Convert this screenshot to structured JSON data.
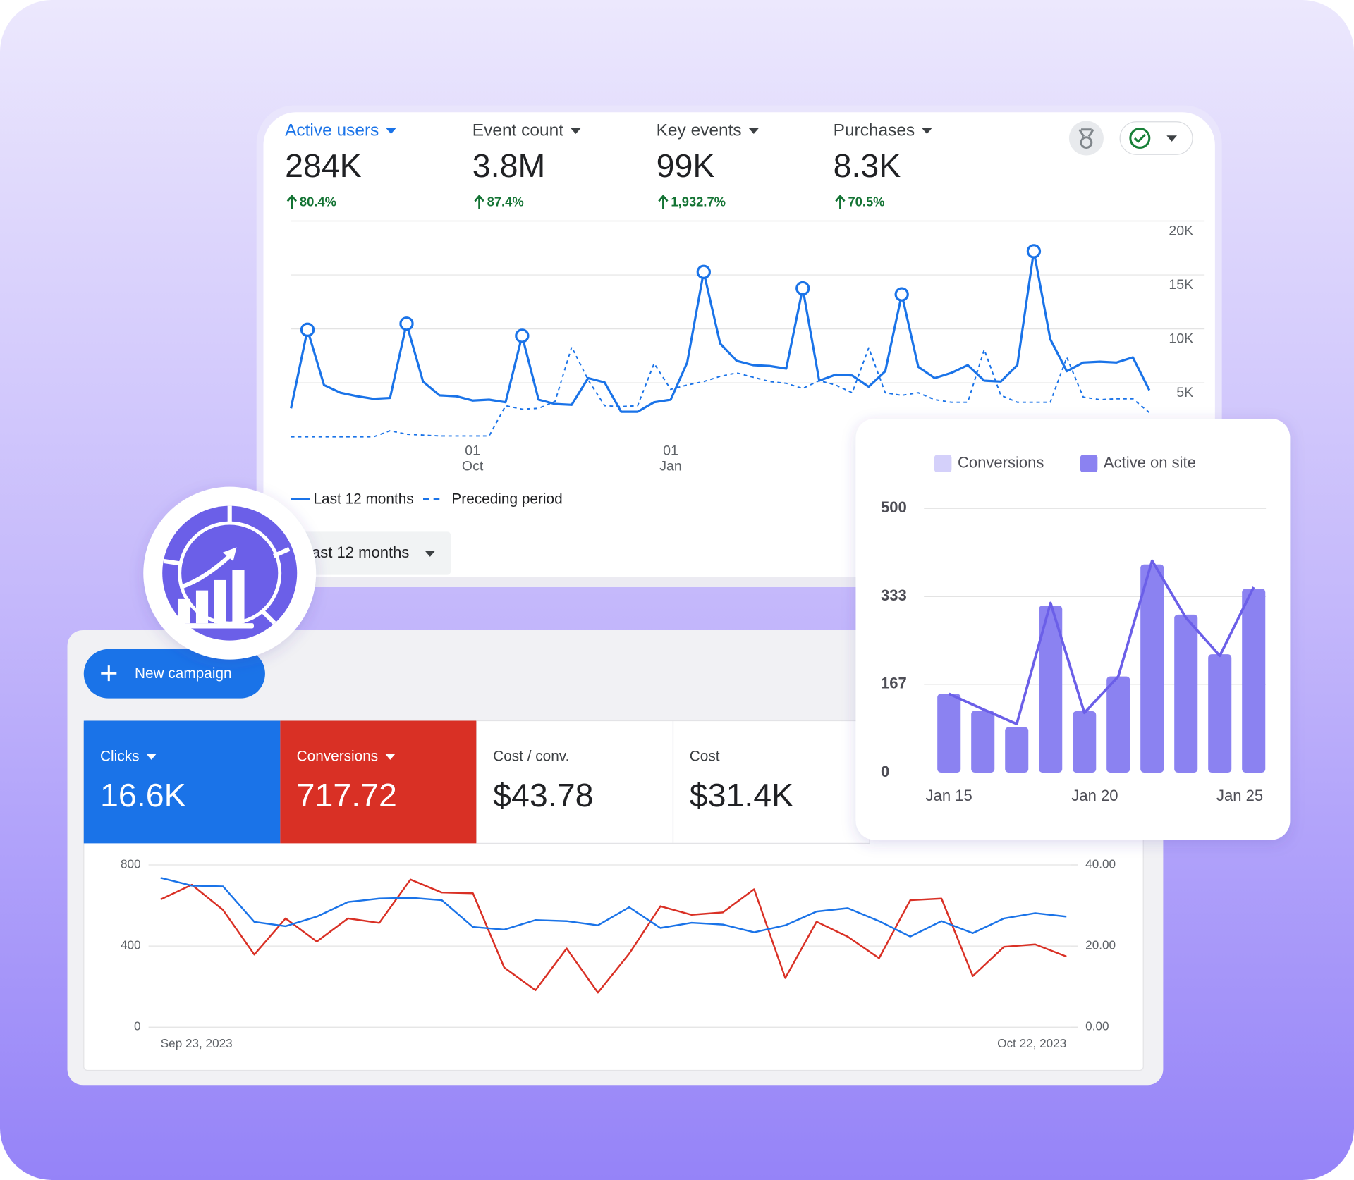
{
  "analytics": {
    "metrics": [
      {
        "label": "Active users",
        "value": "284K",
        "change": "80.4%"
      },
      {
        "label": "Event count",
        "value": "3.8M",
        "change": "87.4%"
      },
      {
        "label": "Key events",
        "value": "99K",
        "change": "1,932.7%"
      },
      {
        "label": "Purchases",
        "value": "8.3K",
        "change": "70.5%"
      }
    ],
    "chart": {
      "type": "line",
      "categories": [
        null,
        null,
        null,
        null,
        null,
        null,
        null,
        null,
        null,
        null,
        null,
        "01 Oct",
        null,
        null,
        null,
        null,
        null,
        null,
        null,
        null,
        null,
        null,
        null,
        "01 Jan",
        null,
        null,
        null,
        null,
        null,
        null,
        null,
        null,
        null,
        null,
        null,
        null,
        null,
        null,
        null,
        null,
        null,
        null,
        null,
        null,
        null,
        null,
        null,
        null,
        null,
        null,
        null,
        null,
        null
      ],
      "ylim": [
        0,
        20000
      ],
      "yticks": [
        {
          "value": 5000,
          "label": "5K"
        },
        {
          "value": 10000,
          "label": "10K"
        },
        {
          "value": 15000,
          "label": "15K"
        },
        {
          "value": 20000,
          "label": "20K"
        }
      ],
      "grid": true,
      "series": [
        {
          "name": "Last 12 months",
          "color": "#1a73e8",
          "style": "solid",
          "values": [
            2640,
            9920,
            4800,
            4080,
            3760,
            3520,
            3600,
            10480,
            5120,
            3840,
            3760,
            3360,
            3440,
            3200,
            9360,
            3440,
            3040,
            2960,
            5440,
            5040,
            2320,
            2320,
            3200,
            3440,
            6880,
            15280,
            8640,
            7040,
            6640,
            6560,
            6320,
            13760,
            5200,
            5760,
            5680,
            4640,
            6080,
            13200,
            6480,
            5440,
            5920,
            6640,
            5200,
            5120,
            6640,
            17200,
            9040,
            6080,
            6880,
            6960,
            6880,
            7360,
            4320
          ]
        },
        {
          "name": "Preceding period",
          "color": "#1a73e8",
          "style": "dashed",
          "values": [
            0,
            0,
            0,
            0,
            0,
            0,
            560,
            240,
            160,
            80,
            80,
            80,
            80,
            2880,
            2560,
            2640,
            3280,
            8320,
            5280,
            2880,
            2800,
            2880,
            6800,
            4400,
            4800,
            5120,
            5600,
            5920,
            5520,
            5120,
            4960,
            4480,
            5200,
            4800,
            4080,
            8240,
            4080,
            3840,
            4080,
            3440,
            3200,
            3200,
            8080,
            3840,
            3200,
            3200,
            3200,
            7360,
            3680,
            3440,
            3520,
            3520,
            2240
          ]
        }
      ]
    },
    "date_range": "Last 12 months"
  },
  "ads": {
    "button": "New campaign",
    "metrics": [
      {
        "label": "Clicks",
        "value": "16.6K",
        "color": "#1a73e8"
      },
      {
        "label": "Conversions",
        "value": "717.72",
        "color": "#d93025"
      },
      {
        "label": "Cost / conv.",
        "value": "$43.78"
      },
      {
        "label": "Cost",
        "value": "$31.4K"
      }
    ],
    "chart": {
      "type": "line",
      "categories": [
        "Sep 23, 2023",
        null,
        null,
        null,
        null,
        null,
        null,
        null,
        null,
        null,
        null,
        null,
        null,
        null,
        null,
        null,
        null,
        null,
        null,
        null,
        null,
        null,
        null,
        null,
        null,
        null,
        null,
        null,
        null,
        "Oct 22, 2023"
      ],
      "ylim": [
        0,
        800
      ],
      "yticks": [
        0,
        400,
        800
      ],
      "y2lim": [
        0,
        40
      ],
      "y2ticks": [
        {
          "value": 0,
          "label": "0.00"
        },
        {
          "value": 20,
          "label": "20.00"
        },
        {
          "value": 40,
          "label": "40.00"
        }
      ],
      "grid": true,
      "series": [
        {
          "color": "#1a73e8",
          "axis": "y",
          "values": [
            736,
            698,
            694,
            519,
            498,
            545,
            617,
            634,
            638,
            626,
            494,
            481,
            528,
            523,
            502,
            591,
            489,
            515,
            506,
            468,
            502,
            570,
            587,
            523,
            447,
            523,
            464,
            536,
            562,
            545
          ]
        },
        {
          "color": "#d93025",
          "axis": "y2",
          "values": [
            31.5,
            35.1,
            28.9,
            17.9,
            26.8,
            21.1,
            26.8,
            25.7,
            36.4,
            33.2,
            33.0,
            14.7,
            9.1,
            19.4,
            8.5,
            18.1,
            29.8,
            27.7,
            28.3,
            34.0,
            12.1,
            26.0,
            22.3,
            17.0,
            31.3,
            31.7,
            12.6,
            19.8,
            20.4,
            17.4
          ]
        }
      ]
    }
  },
  "sessions": {
    "chart": {
      "type": "bar",
      "categories": [
        "Jan 15",
        null,
        null,
        null,
        "Jan 20",
        null,
        null,
        null,
        null,
        "Jan 25"
      ],
      "ylim": [
        0,
        500
      ],
      "yticks": [
        0,
        167,
        333,
        500
      ],
      "grid": true,
      "series": [
        {
          "name": "Conversions",
          "color": "#d4d0fa",
          "stroke": "#6b5fe8",
          "type": "line",
          "values": [
            149,
            120,
            92,
            321,
            113,
            182,
            401,
            293,
            221,
            351
          ]
        },
        {
          "name": "Active on site",
          "color": "#8b82f1",
          "type": "bar",
          "values": [
            149,
            117,
            86,
            316,
            116,
            182,
            394,
            299,
            224,
            348
          ]
        }
      ]
    }
  }
}
